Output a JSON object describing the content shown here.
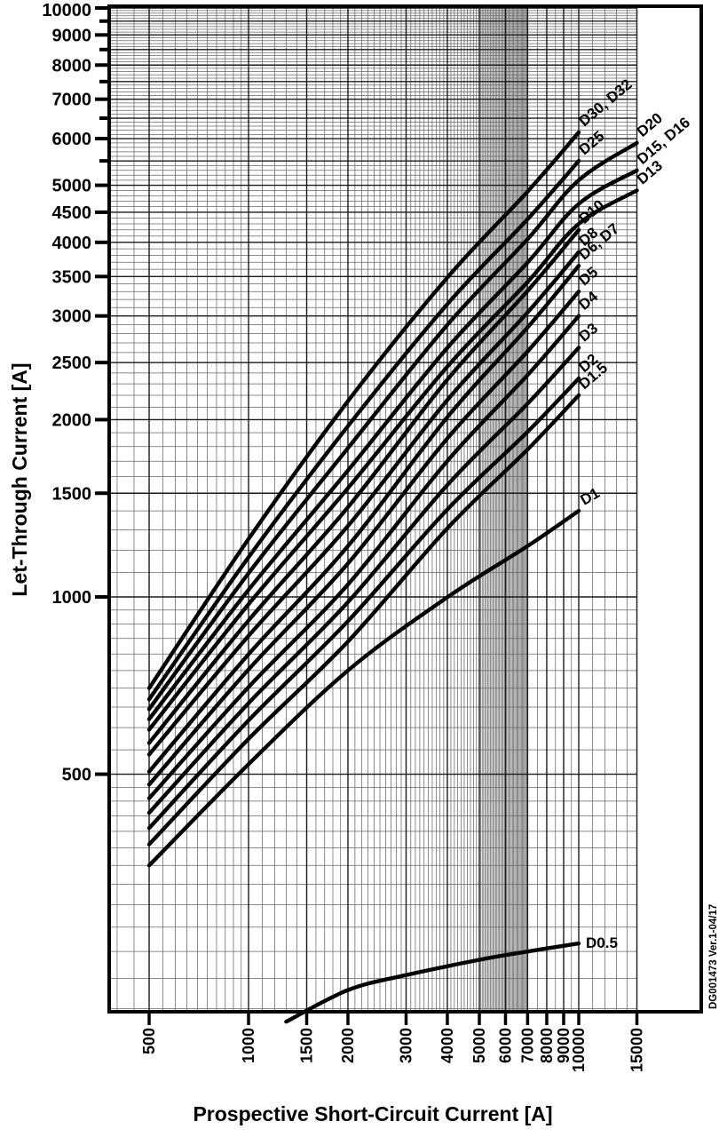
{
  "document_code": "DG001473  Ver.1-04/17",
  "chart_data": {
    "type": "line",
    "title": "",
    "xlabel": "Prospective Short-Circuit Current [A]",
    "ylabel": "Let-Through Current [A]",
    "x_scale": "log",
    "y_scale": "log",
    "x_range": [
      380,
      15000
    ],
    "y_range": [
      197,
      10000
    ],
    "grid": "on",
    "legend_position": "curve-end-labels",
    "x_ticks": [
      {
        "v": 500,
        "label": "500"
      },
      {
        "v": 1000,
        "label": "1000"
      },
      {
        "v": 1500,
        "label": "1500"
      },
      {
        "v": 2000,
        "label": "2000"
      },
      {
        "v": 3000,
        "label": "3000"
      },
      {
        "v": 4000,
        "label": "4000"
      },
      {
        "v": 5000,
        "label": "5000"
      },
      {
        "v": 6000,
        "label": "6000"
      },
      {
        "v": 7000,
        "label": "7000"
      },
      {
        "v": 8000,
        "label": "8000"
      },
      {
        "v": 9000,
        "label": "9000"
      },
      {
        "v": 10000,
        "label": "10000"
      },
      {
        "v": 15000,
        "label": "15000"
      }
    ],
    "y_ticks": [
      {
        "v": 500,
        "label": "500"
      },
      {
        "v": 1000,
        "label": "1000"
      },
      {
        "v": 1500,
        "label": "1500"
      },
      {
        "v": 2000,
        "label": "2000"
      },
      {
        "v": 2500,
        "label": "2500"
      },
      {
        "v": 3000,
        "label": "3000"
      },
      {
        "v": 3500,
        "label": "3500"
      },
      {
        "v": 4000,
        "label": "4000"
      },
      {
        "v": 4500,
        "label": "4500"
      },
      {
        "v": 5000,
        "label": "5000"
      },
      {
        "v": 5500,
        "label": ""
      },
      {
        "v": 6000,
        "label": "6000"
      },
      {
        "v": 6500,
        "label": ""
      },
      {
        "v": 7000,
        "label": "7000"
      },
      {
        "v": 7500,
        "label": ""
      },
      {
        "v": 8000,
        "label": "8000"
      },
      {
        "v": 8500,
        "label": ""
      },
      {
        "v": 9000,
        "label": "9000"
      },
      {
        "v": 9500,
        "label": ""
      },
      {
        "v": 10000,
        "label": "10000"
      }
    ],
    "x_minor_rules": [
      [
        400,
        1000,
        50
      ],
      [
        1000,
        5000,
        100
      ],
      [
        5000,
        7000,
        50
      ],
      [
        7000,
        10000,
        500
      ],
      [
        10000,
        15000,
        1000
      ]
    ],
    "y_minor_rules": [
      [
        200,
        500,
        25
      ],
      [
        500,
        1000,
        50
      ],
      [
        1000,
        10000,
        100
      ]
    ],
    "series": [
      {
        "name": "D30, D32",
        "label_rotate": -40,
        "points": [
          [
            500,
            700
          ],
          [
            1000,
            1254
          ],
          [
            2000,
            2150
          ],
          [
            4000,
            3486
          ],
          [
            7000,
            4880
          ],
          [
            10000,
            6150
          ]
        ]
      },
      {
        "name": "D25",
        "label_rotate": -40,
        "points": [
          [
            500,
            670
          ],
          [
            1000,
            1168
          ],
          [
            2000,
            1950
          ],
          [
            4000,
            3142
          ],
          [
            7000,
            4379
          ],
          [
            10000,
            5500
          ]
        ]
      },
      {
        "name": "D20",
        "label_rotate": -40,
        "points": [
          [
            500,
            645
          ],
          [
            1000,
            1097
          ],
          [
            2000,
            1790
          ],
          [
            4000,
            2897
          ],
          [
            7000,
            4051
          ],
          [
            10000,
            5100
          ],
          [
            15000,
            5900
          ]
        ]
      },
      {
        "name": "D15, D16",
        "label_rotate": -40,
        "points": [
          [
            500,
            620
          ],
          [
            1000,
            1028
          ],
          [
            2000,
            1640
          ],
          [
            4000,
            2649
          ],
          [
            7000,
            3697
          ],
          [
            10000,
            4650
          ],
          [
            15000,
            5300
          ]
        ]
      },
      {
        "name": "D13",
        "label_rotate": -40,
        "points": [
          [
            500,
            595
          ],
          [
            1000,
            972
          ],
          [
            2000,
            1530
          ],
          [
            4000,
            2461
          ],
          [
            7000,
            3426
          ],
          [
            10000,
            4300
          ],
          [
            15000,
            4900
          ]
        ]
      },
      {
        "name": "D10",
        "label_rotate": -40,
        "points": [
          [
            500,
            565
          ],
          [
            1000,
            912
          ],
          [
            2000,
            1420
          ],
          [
            4000,
            2339
          ],
          [
            7000,
            3309
          ],
          [
            10000,
            4200
          ]
        ]
      },
      {
        "name": "D8",
        "label_rotate": -40,
        "points": [
          [
            500,
            540
          ],
          [
            1000,
            859
          ],
          [
            2000,
            1320
          ],
          [
            4000,
            2160
          ],
          [
            7000,
            3042
          ],
          [
            10000,
            3850
          ]
        ]
      },
      {
        "name": "D6, D7",
        "label_rotate": -40,
        "points": [
          [
            500,
            505
          ],
          [
            1000,
            799
          ],
          [
            2000,
            1220
          ],
          [
            4000,
            2020
          ],
          [
            7000,
            2868
          ],
          [
            10000,
            3650
          ]
        ]
      },
      {
        "name": "D5",
        "label_rotate": -40,
        "points": [
          [
            500,
            480
          ],
          [
            1000,
            753
          ],
          [
            2000,
            1140
          ],
          [
            4000,
            1859
          ],
          [
            7000,
            2612
          ],
          [
            10000,
            3300
          ]
        ]
      },
      {
        "name": "D4",
        "label_rotate": -40,
        "points": [
          [
            500,
            455
          ],
          [
            1000,
            703
          ],
          [
            2000,
            1050
          ],
          [
            4000,
            1702
          ],
          [
            7000,
            2381
          ],
          [
            10000,
            3000
          ]
        ]
      },
      {
        "name": "D3",
        "label_rotate": -40,
        "points": [
          [
            500,
            430
          ],
          [
            1000,
            660
          ],
          [
            2000,
            980
          ],
          [
            4000,
            1549
          ],
          [
            7000,
            2129
          ],
          [
            10000,
            2650
          ]
        ]
      },
      {
        "name": "D2",
        "label_rotate": -40,
        "points": [
          [
            500,
            405
          ],
          [
            1000,
            617
          ],
          [
            2000,
            910
          ],
          [
            4000,
            1408
          ],
          [
            7000,
            1907
          ],
          [
            10000,
            2350
          ]
        ]
      },
      {
        "name": "D1.5",
        "label_rotate": -40,
        "points": [
          [
            500,
            380
          ],
          [
            1000,
            574
          ],
          [
            2000,
            840
          ],
          [
            4000,
            1308
          ],
          [
            7000,
            1780
          ],
          [
            10000,
            2200
          ]
        ]
      },
      {
        "name": "D1",
        "label_rotate": -30,
        "points": [
          [
            500,
            350
          ],
          [
            1000,
            520
          ],
          [
            2000,
            750
          ],
          [
            4000,
            999
          ],
          [
            7000,
            1220
          ],
          [
            10000,
            1400
          ]
        ]
      },
      {
        "name": "D0.5",
        "label_rotate": 0,
        "points": [
          [
            1300,
            190
          ],
          [
            2000,
            215
          ],
          [
            3000,
            228
          ],
          [
            5000,
            242
          ],
          [
            7000,
            250
          ],
          [
            10000,
            258
          ]
        ]
      }
    ]
  }
}
